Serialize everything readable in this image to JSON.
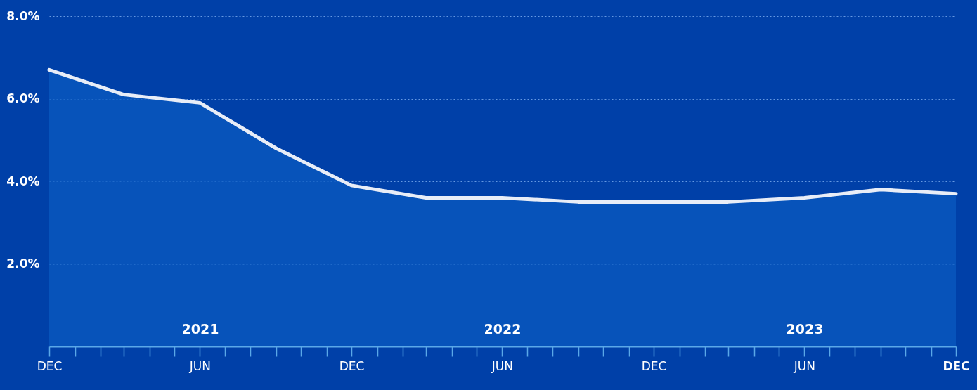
{
  "chart_data": {
    "type": "area",
    "x": [
      "2020-12",
      "2021-03",
      "2021-06",
      "2021-09",
      "2021-12",
      "2022-03",
      "2022-06",
      "2022-09",
      "2022-12",
      "2023-03",
      "2023-06",
      "2023-09",
      "2023-12"
    ],
    "series": [
      {
        "color": "#e8edf7",
        "values": [
          6.7,
          6.1,
          5.9,
          4.8,
          3.9,
          3.6,
          3.6,
          3.5,
          3.5,
          3.5,
          3.6,
          3.8,
          3.7
        ]
      }
    ],
    "ylim": [
      0,
      8
    ],
    "yticks": [
      {
        "value": 2,
        "label": "2.0%"
      },
      {
        "value": 4,
        "label": "4.0%"
      },
      {
        "value": 6,
        "label": "6.0%"
      },
      {
        "value": 8,
        "label": "8.0%"
      }
    ],
    "xlim": [
      "2020-12",
      "2023-12"
    ],
    "xticks": [
      {
        "value": "2020-12",
        "label": "DEC"
      },
      {
        "value": "2021-01",
        "label": null
      },
      {
        "value": "2021-02",
        "label": null
      },
      {
        "value": "2021-03",
        "label": null
      },
      {
        "value": "2021-04",
        "label": null
      },
      {
        "value": "2021-05",
        "label": null
      },
      {
        "value": "2021-06",
        "label": "JUN"
      },
      {
        "value": "2021-07",
        "label": null
      },
      {
        "value": "2021-08",
        "label": null
      },
      {
        "value": "2021-09",
        "label": null
      },
      {
        "value": "2021-10",
        "label": null
      },
      {
        "value": "2021-11",
        "label": null
      },
      {
        "value": "2021-12",
        "label": "DEC"
      },
      {
        "value": "2022-01",
        "label": null
      },
      {
        "value": "2022-02",
        "label": null
      },
      {
        "value": "2022-03",
        "label": null
      },
      {
        "value": "2022-04",
        "label": null
      },
      {
        "value": "2022-05",
        "label": null
      },
      {
        "value": "2022-06",
        "label": "JUN"
      },
      {
        "value": "2022-07",
        "label": null
      },
      {
        "value": "2022-08",
        "label": null
      },
      {
        "value": "2022-09",
        "label": null
      },
      {
        "value": "2022-10",
        "label": null
      },
      {
        "value": "2022-11",
        "label": null
      },
      {
        "value": "2022-12",
        "label": "DEC"
      },
      {
        "value": "2023-01",
        "label": null
      },
      {
        "value": "2023-02",
        "label": null
      },
      {
        "value": "2023-03",
        "label": null
      },
      {
        "value": "2023-04",
        "label": null
      },
      {
        "value": "2023-05",
        "label": null
      },
      {
        "value": "2023-06",
        "label": "JUN"
      },
      {
        "value": "2023-07",
        "label": null
      },
      {
        "value": "2023-08",
        "label": null
      },
      {
        "value": "2023-09",
        "label": null
      },
      {
        "value": "2023-10",
        "label": null
      },
      {
        "value": "2023-11",
        "label": null
      },
      {
        "value": "2023-12",
        "label": "DEC"
      }
    ],
    "grid": "y",
    "annotations": [
      "2021",
      "2022",
      "2023"
    ]
  }
}
